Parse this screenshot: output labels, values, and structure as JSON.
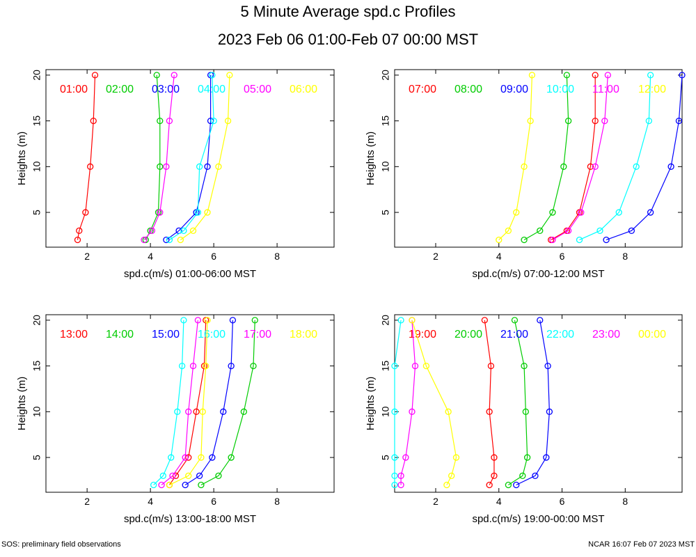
{
  "title": "5 Minute Average spd.c Profiles",
  "subtitle": "2023 Feb 06 01:00-Feb 07 00:00 MST",
  "footer_left": "SOS: preliminary field observations",
  "footer_right": "NCAR 16:07 Feb 07 2023 MST",
  "colors": [
    "#ff0000",
    "#00cc00",
    "#0000ff",
    "#00ffff",
    "#ff00ff",
    "#ffff00"
  ],
  "chart_data": [
    {
      "type": "line",
      "xlabel": "spd.c(m/s) 01:00-06:00 MST",
      "ylabel": "Heights (m)",
      "xlim": [
        0.7,
        9.8
      ],
      "ylim": [
        1.2,
        20.6
      ],
      "xticks": [
        2,
        4,
        6,
        8
      ],
      "yticks": [
        5,
        10,
        15,
        20
      ],
      "series": [
        {
          "name": "01:00",
          "heights": [
            2,
            3,
            5,
            10,
            15,
            20
          ],
          "values": [
            1.7,
            1.75,
            1.95,
            2.1,
            2.2,
            2.25
          ]
        },
        {
          "name": "02:00",
          "heights": [
            2,
            3,
            5,
            10,
            15,
            20
          ],
          "values": [
            3.85,
            4.0,
            4.25,
            4.3,
            4.3,
            4.2
          ]
        },
        {
          "name": "03:00",
          "heights": [
            2,
            3,
            5,
            10,
            15,
            20
          ],
          "values": [
            4.5,
            4.9,
            5.45,
            5.8,
            5.9,
            5.9
          ]
        },
        {
          "name": "04:00",
          "heights": [
            2,
            3,
            5,
            10,
            15,
            20
          ],
          "values": [
            4.6,
            5.05,
            5.5,
            5.55,
            6.0,
            5.95
          ]
        },
        {
          "name": "05:00",
          "heights": [
            2,
            3,
            5,
            10,
            15,
            20
          ],
          "values": [
            3.8,
            4.05,
            4.3,
            4.5,
            4.6,
            4.75
          ]
        },
        {
          "name": "06:00",
          "heights": [
            2,
            3,
            5,
            10,
            15,
            20
          ],
          "values": [
            4.95,
            5.35,
            5.8,
            6.15,
            6.45,
            6.5
          ]
        }
      ]
    },
    {
      "type": "line",
      "xlabel": "spd.c(m/s) 07:00-12:00 MST",
      "ylabel": "Heights (m)",
      "xlim": [
        0.7,
        9.8
      ],
      "ylim": [
        1.2,
        20.6
      ],
      "xticks": [
        2,
        4,
        6,
        8
      ],
      "yticks": [
        5,
        10,
        15,
        20
      ],
      "series": [
        {
          "name": "07:00",
          "heights": [
            2,
            3,
            5,
            10,
            15,
            20
          ],
          "values": [
            5.65,
            6.15,
            6.55,
            6.9,
            7.05,
            7.05
          ]
        },
        {
          "name": "08:00",
          "heights": [
            2,
            3,
            5,
            10,
            15,
            20
          ],
          "values": [
            4.8,
            5.3,
            5.7,
            6.05,
            6.2,
            6.15
          ]
        },
        {
          "name": "09:00",
          "heights": [
            2,
            3,
            5,
            10,
            15,
            20
          ],
          "values": [
            7.4,
            8.2,
            8.8,
            9.45,
            9.7,
            9.8
          ]
        },
        {
          "name": "10:00",
          "heights": [
            2,
            3,
            5,
            10,
            15,
            20
          ],
          "values": [
            6.55,
            7.2,
            7.8,
            8.35,
            8.75,
            8.8
          ]
        },
        {
          "name": "11:00",
          "heights": [
            2,
            3,
            5,
            10,
            15,
            20
          ],
          "values": [
            5.7,
            6.2,
            6.6,
            7.05,
            7.35,
            7.45
          ]
        },
        {
          "name": "12:00",
          "heights": [
            2,
            3,
            5,
            10,
            15,
            20
          ],
          "values": [
            4.0,
            4.3,
            4.55,
            4.8,
            5.0,
            5.05
          ]
        }
      ]
    },
    {
      "type": "line",
      "xlabel": "spd.c(m/s) 13:00-18:00 MST",
      "ylabel": "Heights (m)",
      "xlim": [
        0.7,
        9.8
      ],
      "ylim": [
        1.2,
        20.6
      ],
      "xticks": [
        2,
        4,
        6,
        8
      ],
      "yticks": [
        5,
        10,
        15,
        20
      ],
      "series": [
        {
          "name": "13:00",
          "heights": [
            2,
            3,
            5,
            10,
            15,
            20
          ],
          "values": [
            4.6,
            4.8,
            5.2,
            5.45,
            5.7,
            5.75
          ]
        },
        {
          "name": "14:00",
          "heights": [
            2,
            3,
            5,
            10,
            15,
            20
          ],
          "values": [
            5.6,
            6.15,
            6.55,
            6.95,
            7.25,
            7.3
          ]
        },
        {
          "name": "15:00",
          "heights": [
            2,
            3,
            5,
            10,
            15,
            20
          ],
          "values": [
            5.1,
            5.55,
            5.95,
            6.3,
            6.55,
            6.6
          ]
        },
        {
          "name": "16:00",
          "heights": [
            2,
            3,
            5,
            10,
            15,
            20
          ],
          "values": [
            4.1,
            4.4,
            4.65,
            4.85,
            5.0,
            5.05
          ]
        },
        {
          "name": "17:00",
          "heights": [
            2,
            3,
            5,
            10,
            15,
            20
          ],
          "values": [
            4.35,
            4.7,
            5.1,
            5.2,
            5.35,
            5.5
          ]
        },
        {
          "name": "18:00",
          "heights": [
            2,
            3,
            5,
            10,
            15,
            20
          ],
          "values": [
            4.6,
            5.2,
            5.6,
            5.65,
            5.75,
            5.8
          ]
        }
      ]
    },
    {
      "type": "line",
      "xlabel": "spd.c(m/s) 19:00-00:00 MST",
      "ylabel": "Heights (m)",
      "xlim": [
        0.7,
        9.8
      ],
      "ylim": [
        1.2,
        20.6
      ],
      "xticks": [
        2,
        4,
        6,
        8
      ],
      "yticks": [
        5,
        10,
        15,
        20
      ],
      "series": [
        {
          "name": "19:00",
          "heights": [
            2,
            3,
            5,
            10,
            15,
            20
          ],
          "values": [
            3.7,
            3.85,
            3.85,
            3.7,
            3.75,
            3.55
          ]
        },
        {
          "name": "20:00",
          "heights": [
            2,
            3,
            5,
            10,
            15,
            20
          ],
          "values": [
            4.3,
            4.75,
            4.9,
            4.85,
            4.8,
            4.5
          ]
        },
        {
          "name": "21:00",
          "heights": [
            2,
            3,
            5,
            10,
            15,
            20
          ],
          "values": [
            4.55,
            5.15,
            5.5,
            5.6,
            5.55,
            5.3
          ]
        },
        {
          "name": "22:00",
          "heights": [
            2,
            3,
            5,
            10,
            15,
            20
          ],
          "values": [
            0.7,
            0.7,
            0.7,
            0.7,
            0.7,
            0.9
          ]
        },
        {
          "name": "23:00",
          "heights": [
            2,
            3,
            5,
            10,
            15,
            20
          ],
          "values": [
            0.9,
            0.9,
            1.05,
            1.25,
            1.35,
            1.25
          ]
        },
        {
          "name": "00:00",
          "heights": [
            2,
            3,
            5,
            10,
            15,
            20
          ],
          "values": [
            2.35,
            2.5,
            2.65,
            2.4,
            1.7,
            1.25
          ]
        }
      ]
    }
  ]
}
